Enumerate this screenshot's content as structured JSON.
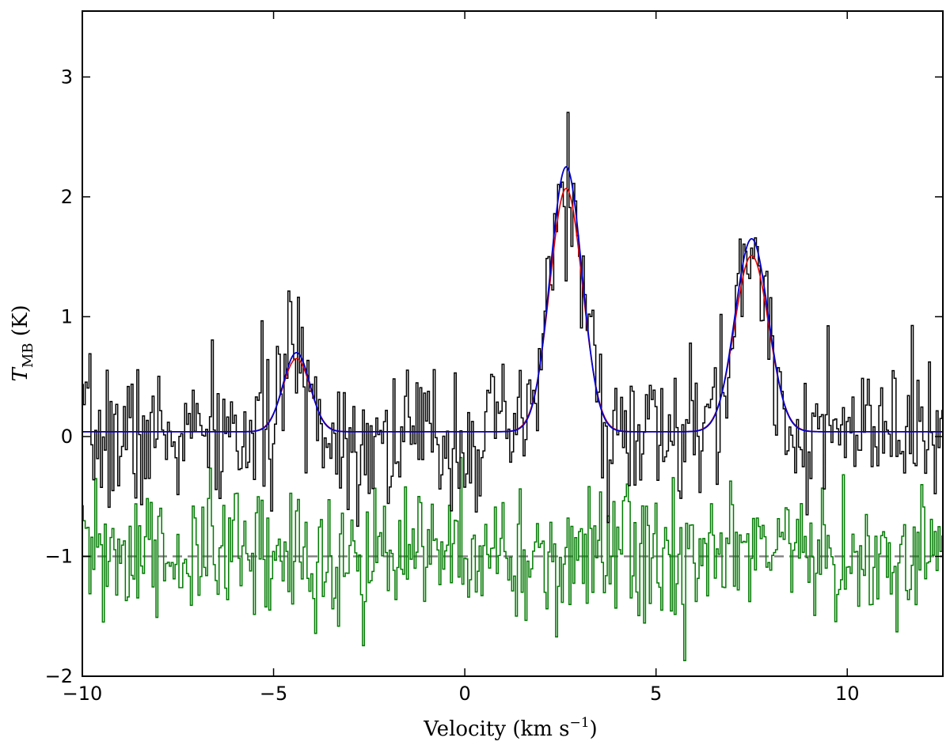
{
  "chart_data": {
    "type": "line",
    "title": "",
    "xlabel": "Velocity (km s",
    "xlabel_sup": "−1",
    "xlabel_close": ")",
    "ylabel_main": "T",
    "ylabel_sub": "MB",
    "ylabel_unit": " (K)",
    "xlim": [
      -10,
      12.5
    ],
    "ylim": [
      -2,
      3.55
    ],
    "xticks": [
      -10,
      -5,
      0,
      5,
      10
    ],
    "xtick_labels": [
      "−10",
      "−5",
      "0",
      "5",
      "10"
    ],
    "yticks": [
      -2,
      -1,
      0,
      1,
      2,
      3
    ],
    "ytick_labels": [
      "−2",
      "−1",
      "0",
      "1",
      "2",
      "3"
    ],
    "grid": false,
    "legend": "none",
    "channel_width_kms": 0.05,
    "colors": {
      "spectrum": "#000000",
      "residual": "#007a00",
      "fit_red": "#e00000",
      "fit_blue": "#0000cc",
      "zero_dashed": "#808080"
    },
    "spectrum": {
      "baseline": 0.0,
      "noise_rms": 0.3,
      "seed": 7,
      "peaks": [
        {
          "center": -4.4,
          "amplitude": 0.68,
          "fwhm": 0.85
        },
        {
          "center": 2.65,
          "amplitude": 2.15,
          "fwhm": 1.0
        },
        {
          "center": 7.5,
          "amplitude": 1.55,
          "fwhm": 1.05
        }
      ]
    },
    "fit_red": {
      "baseline": 0.04,
      "components": [
        {
          "center": -4.4,
          "amplitude": 0.61,
          "fwhm": 0.85
        },
        {
          "center": 2.65,
          "amplitude": 2.03,
          "fwhm": 1.0
        },
        {
          "center": 7.5,
          "amplitude": 1.47,
          "fwhm": 1.05
        }
      ]
    },
    "fit_blue": {
      "baseline": 0.04,
      "components": [
        {
          "center": -4.4,
          "amplitude": 0.66,
          "fwhm": 0.82
        },
        {
          "center": 2.65,
          "amplitude": 2.21,
          "fwhm": 0.97
        },
        {
          "center": 7.5,
          "amplitude": 1.61,
          "fwhm": 1.02
        }
      ]
    },
    "residual": {
      "offset": -1.0,
      "noise_rms": 0.3,
      "seed": 31
    },
    "reference_line": {
      "y": -1.0,
      "style": "dashed"
    }
  }
}
